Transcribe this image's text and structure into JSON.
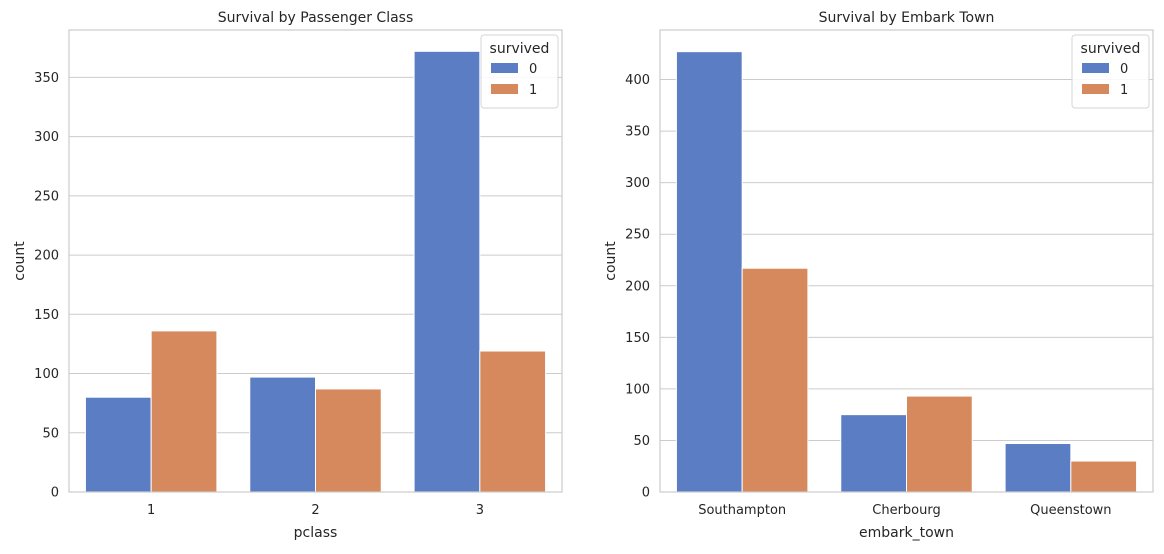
{
  "colors": {
    "series0": "#5a7dc3",
    "series1": "#d6895c",
    "grid": "#cccccc",
    "spine": "#cccccc"
  },
  "chart_data": [
    {
      "type": "bar",
      "title": "Survival by Passenger Class",
      "xlabel": "pclass",
      "ylabel": "count",
      "categories": [
        "1",
        "2",
        "3"
      ],
      "series": [
        {
          "name": "0",
          "values": [
            80,
            97,
            372
          ]
        },
        {
          "name": "1",
          "values": [
            136,
            87,
            119
          ]
        }
      ],
      "ylim": [
        0,
        390
      ],
      "yticks": [
        0,
        50,
        100,
        150,
        200,
        250,
        300,
        350
      ],
      "legend": {
        "title": "survived",
        "placement": "top-right"
      },
      "grid": "horizontal"
    },
    {
      "type": "bar",
      "title": "Survival by Embark Town",
      "xlabel": "embark_town",
      "ylabel": "count",
      "categories": [
        "Southampton",
        "Cherbourg",
        "Queenstown"
      ],
      "series": [
        {
          "name": "0",
          "values": [
            427,
            75,
            47
          ]
        },
        {
          "name": "1",
          "values": [
            217,
            93,
            30
          ]
        }
      ],
      "ylim": [
        0,
        448
      ],
      "yticks": [
        0,
        50,
        100,
        150,
        200,
        250,
        300,
        350,
        400
      ],
      "legend": {
        "title": "survived",
        "placement": "top-right"
      },
      "grid": "horizontal"
    }
  ]
}
